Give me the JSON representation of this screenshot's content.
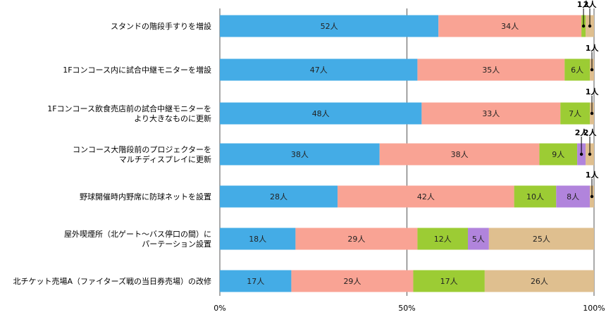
{
  "chart_data": {
    "type": "bar",
    "orientation": "horizontal",
    "stacked": "percent",
    "categories": [
      [
        "スタンドの階段手すりを増設"
      ],
      [
        "1Fコンコース内に試合中継モニターを増設"
      ],
      [
        "1Fコンコース飲食売店前の試合中継モニターを",
        "より大きなものに更新"
      ],
      [
        "コンコース大階段前のプロジェクターを",
        "マルチディスプレイに更新"
      ],
      [
        "野球開催時内野席に防球ネットを設置"
      ],
      [
        "屋外喫煙所（北ゲート～バス停口の間）に",
        "パーテーション設置"
      ],
      [
        "北チケット売場A（ファイターズ戦の当日券売場）の改修"
      ]
    ],
    "series": [
      {
        "color": "#44ace6",
        "values": [
          52,
          47,
          48,
          38,
          28,
          18,
          17
        ]
      },
      {
        "color": "#f9a394",
        "values": [
          34,
          35,
          33,
          38,
          42,
          29,
          29
        ]
      },
      {
        "color": "#9ccc34",
        "values": [
          1,
          6,
          7,
          9,
          10,
          12,
          17
        ]
      },
      {
        "color": "#b184dc",
        "values": [
          0,
          0,
          0,
          2,
          8,
          5,
          0
        ]
      },
      {
        "color": "#dfbf8f",
        "values": [
          2,
          1,
          1,
          2,
          1,
          25,
          26
        ]
      }
    ],
    "unit": "人",
    "xlim": [
      0,
      100
    ],
    "xticks": [
      "0%",
      "50%",
      "100%"
    ],
    "grid": true,
    "legend": "none"
  }
}
